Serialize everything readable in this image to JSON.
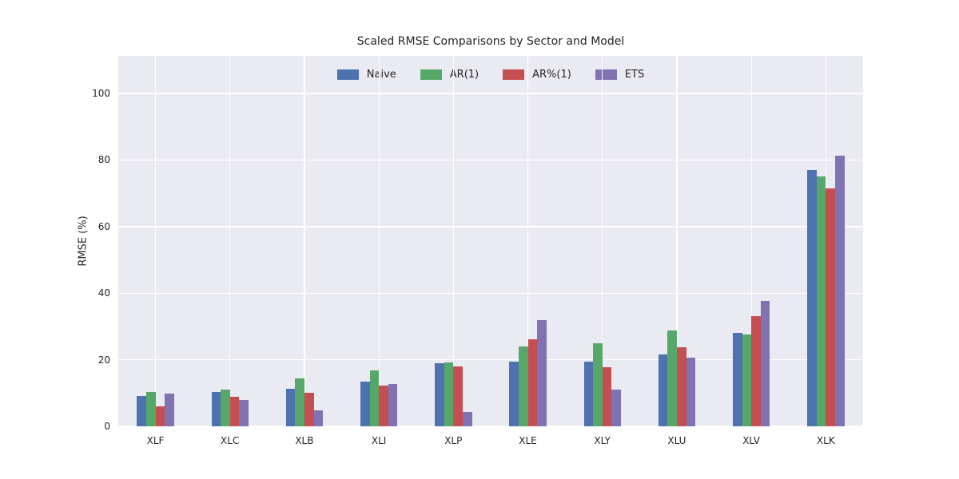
{
  "chart_data": {
    "type": "bar",
    "title": "Scaled RMSE Comparisons by Sector and Model",
    "xlabel": "",
    "ylabel": "RMSE (%)",
    "categories": [
      "XLF",
      "XLC",
      "XLB",
      "XLI",
      "XLP",
      "XLE",
      "XLY",
      "XLU",
      "XLV",
      "XLK"
    ],
    "series": [
      {
        "name": "Naive",
        "color": "#4C72B0",
        "values": [
          9.0,
          10.3,
          11.3,
          13.4,
          18.9,
          19.4,
          19.4,
          21.6,
          28.0,
          77.0
        ]
      },
      {
        "name": "AR(1)",
        "color": "#55A868",
        "values": [
          10.2,
          11.0,
          14.5,
          16.8,
          19.2,
          24.0,
          24.9,
          28.8,
          27.7,
          75.0
        ]
      },
      {
        "name": "AR%(1)",
        "color": "#C44E52",
        "values": [
          5.9,
          8.9,
          10.0,
          12.2,
          18.0,
          26.1,
          17.7,
          23.7,
          33.0,
          71.5
        ]
      },
      {
        "name": "ETS",
        "color": "#8172B2",
        "values": [
          9.9,
          7.8,
          4.8,
          12.7,
          4.3,
          31.9,
          11.1,
          20.6,
          37.6,
          81.2
        ]
      }
    ],
    "yticks": [
      0,
      20,
      40,
      60,
      80,
      100
    ],
    "ylim": [
      0,
      111.3
    ],
    "grid": true,
    "legend_position": "upper center",
    "colors": {
      "plot_background": "#EAEAF2",
      "figure_background": "#ffffff",
      "gridline": "#ffffff",
      "text": "#262626"
    }
  }
}
